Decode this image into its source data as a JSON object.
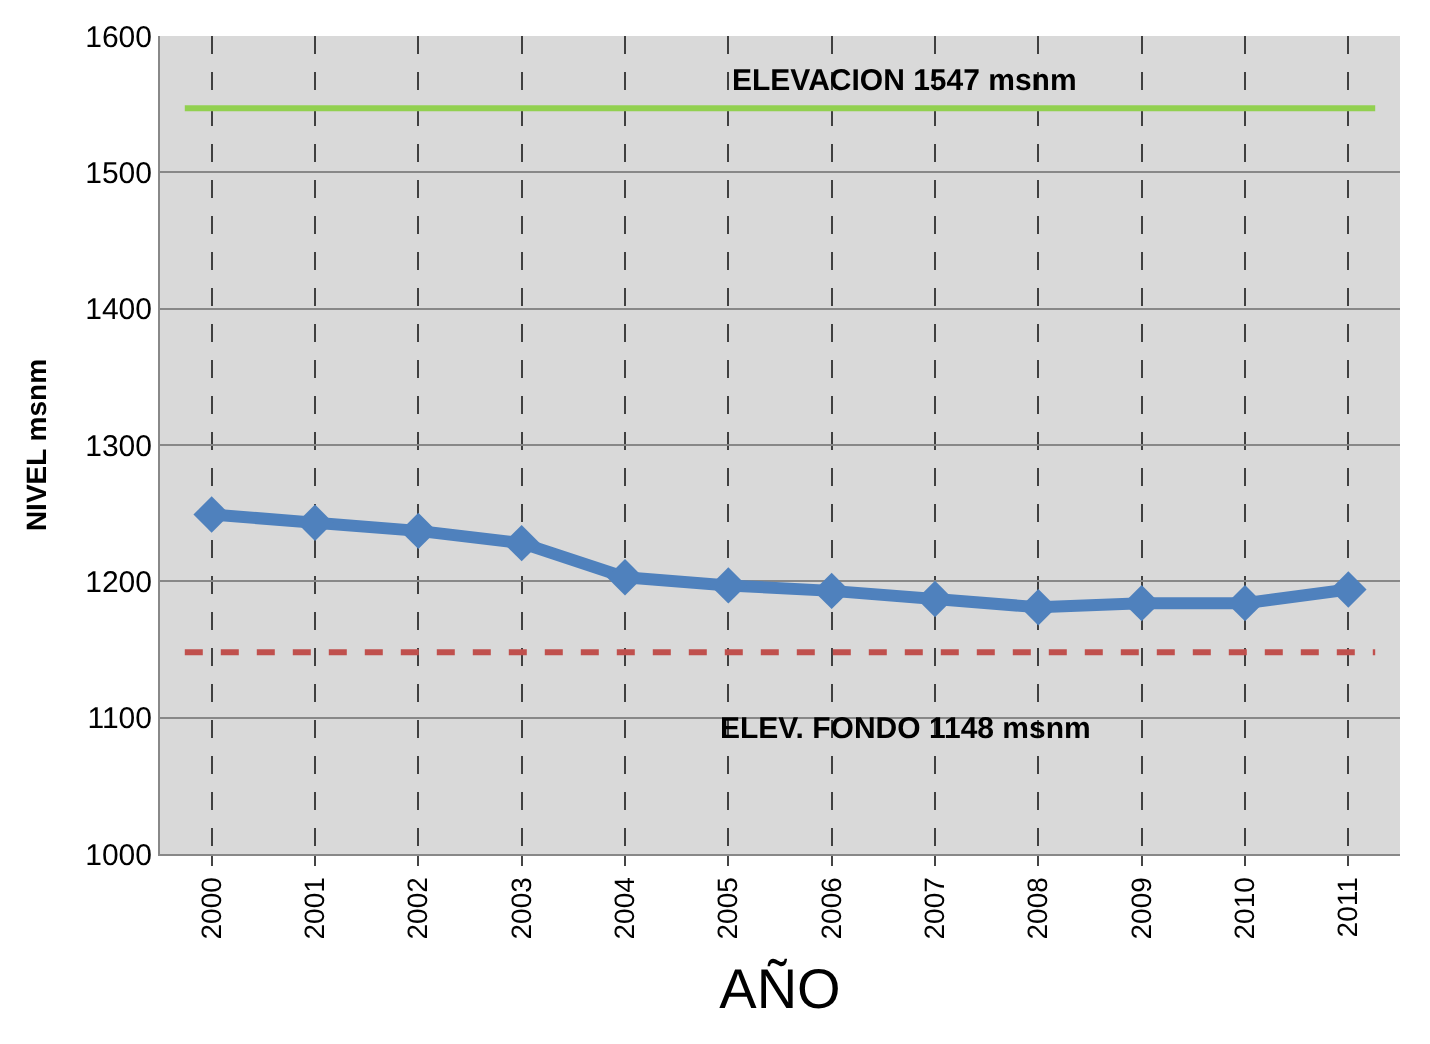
{
  "chart_data": {
    "type": "line",
    "xlabel": "AÑO",
    "ylabel": "NIVEL msnm",
    "categories": [
      "2000",
      "2001",
      "2002",
      "2003",
      "2004",
      "2005",
      "2006",
      "2007",
      "2008",
      "2009",
      "2010",
      "2011"
    ],
    "series": [
      {
        "color": "#4f81bd",
        "values": [
          1249,
          1243,
          1237,
          1228,
          1203,
          1197,
          1193,
          1187,
          1181,
          1184,
          1184,
          1194
        ]
      }
    ],
    "ylim": [
      1000,
      1600
    ],
    "yticks": [
      1000,
      1100,
      1200,
      1300,
      1400,
      1500,
      1600
    ],
    "ref_lines": [
      {
        "axis": "y",
        "value": 1547,
        "label": "ELEVACION 1547 msnm",
        "color": "#92d050",
        "line_style": "solid"
      },
      {
        "axis": "y",
        "value": 1148,
        "label": "ELEV. FONDO 1148 msnm",
        "color": "#c0504d",
        "line_style": "dashed"
      }
    ],
    "grid": true,
    "marker": "diamond",
    "line_style": "solid",
    "legend": false
  }
}
